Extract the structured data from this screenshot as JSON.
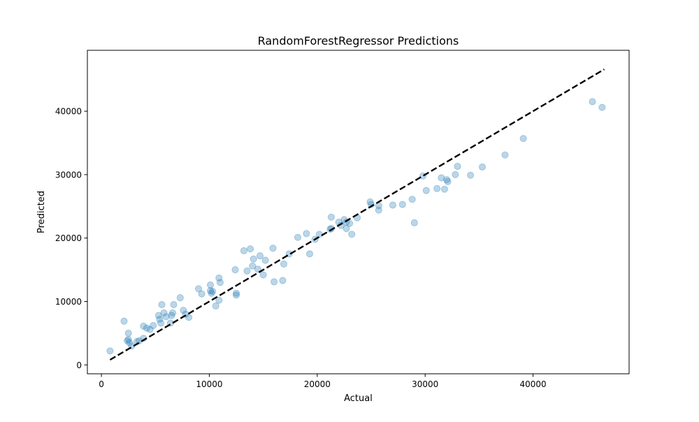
{
  "chart_data": {
    "type": "scatter",
    "title": "RandomForestRegressor Predictions",
    "xlabel": "Actual",
    "ylabel": "Predicted",
    "xlim": [
      -1300,
      48900
    ],
    "ylim": [
      -1400,
      49600
    ],
    "xticks": [
      0,
      10000,
      20000,
      30000,
      40000
    ],
    "yticks": [
      0,
      10000,
      20000,
      30000,
      40000
    ],
    "xtick_labels": [
      "0",
      "10000",
      "20000",
      "30000",
      "40000"
    ],
    "ytick_labels": [
      "0",
      "10000",
      "20000",
      "30000",
      "40000"
    ],
    "grid": false,
    "legend": null,
    "point_color": "#1f77b4",
    "point_alpha": 0.3,
    "reference_line": {
      "style": "dashed",
      "color": "#000000",
      "x": [
        800,
        46600
      ],
      "y": [
        800,
        46600
      ]
    },
    "series": [
      {
        "points": [
          [
            800,
            2200
          ],
          [
            2100,
            6900
          ],
          [
            2400,
            3800
          ],
          [
            2500,
            4000
          ],
          [
            2500,
            5000
          ],
          [
            2600,
            3500
          ],
          [
            2800,
            3000
          ],
          [
            3300,
            3700
          ],
          [
            3500,
            3800
          ],
          [
            3900,
            4200
          ],
          [
            3900,
            6100
          ],
          [
            4200,
            5800
          ],
          [
            4500,
            5600
          ],
          [
            4800,
            6200
          ],
          [
            5300,
            7800
          ],
          [
            5400,
            7200
          ],
          [
            5500,
            6600
          ],
          [
            5600,
            9500
          ],
          [
            5800,
            8200
          ],
          [
            6000,
            7600
          ],
          [
            6400,
            6600
          ],
          [
            6500,
            7800
          ],
          [
            6600,
            8200
          ],
          [
            6700,
            9500
          ],
          [
            7300,
            10600
          ],
          [
            7600,
            8600
          ],
          [
            7800,
            8000
          ],
          [
            8100,
            7500
          ],
          [
            9000,
            12000
          ],
          [
            9300,
            11200
          ],
          [
            10100,
            12600
          ],
          [
            10100,
            11700
          ],
          [
            10200,
            11300
          ],
          [
            10300,
            11600
          ],
          [
            10600,
            9300
          ],
          [
            10900,
            10200
          ],
          [
            10900,
            13700
          ],
          [
            11000,
            13000
          ],
          [
            12400,
            15000
          ],
          [
            12500,
            11000
          ],
          [
            12500,
            11300
          ],
          [
            13200,
            18000
          ],
          [
            13500,
            14800
          ],
          [
            13800,
            18300
          ],
          [
            14000,
            15600
          ],
          [
            14100,
            16700
          ],
          [
            14500,
            15100
          ],
          [
            14700,
            17200
          ],
          [
            15000,
            14200
          ],
          [
            15200,
            16500
          ],
          [
            15900,
            18400
          ],
          [
            16000,
            13100
          ],
          [
            16800,
            13300
          ],
          [
            16900,
            15900
          ],
          [
            17400,
            17500
          ],
          [
            18200,
            20100
          ],
          [
            19000,
            20700
          ],
          [
            19300,
            17500
          ],
          [
            19800,
            19800
          ],
          [
            20200,
            20600
          ],
          [
            21200,
            21400
          ],
          [
            21300,
            23300
          ],
          [
            21300,
            21500
          ],
          [
            22000,
            22500
          ],
          [
            22200,
            22000
          ],
          [
            22500,
            22900
          ],
          [
            22700,
            22500
          ],
          [
            22700,
            21500
          ],
          [
            23000,
            22300
          ],
          [
            23200,
            20600
          ],
          [
            23700,
            23200
          ],
          [
            24900,
            25700
          ],
          [
            25000,
            25300
          ],
          [
            25700,
            24400
          ],
          [
            25700,
            25100
          ],
          [
            27000,
            25200
          ],
          [
            27900,
            25300
          ],
          [
            28800,
            26100
          ],
          [
            29000,
            22400
          ],
          [
            29800,
            29800
          ],
          [
            30100,
            27500
          ],
          [
            31100,
            27800
          ],
          [
            31500,
            29500
          ],
          [
            31800,
            27700
          ],
          [
            32000,
            29200
          ],
          [
            32100,
            28900
          ],
          [
            32800,
            30000
          ],
          [
            33000,
            31300
          ],
          [
            34200,
            29900
          ],
          [
            35300,
            31200
          ],
          [
            37400,
            33100
          ],
          [
            39100,
            35700
          ],
          [
            45500,
            41500
          ],
          [
            46400,
            40600
          ]
        ]
      }
    ]
  }
}
